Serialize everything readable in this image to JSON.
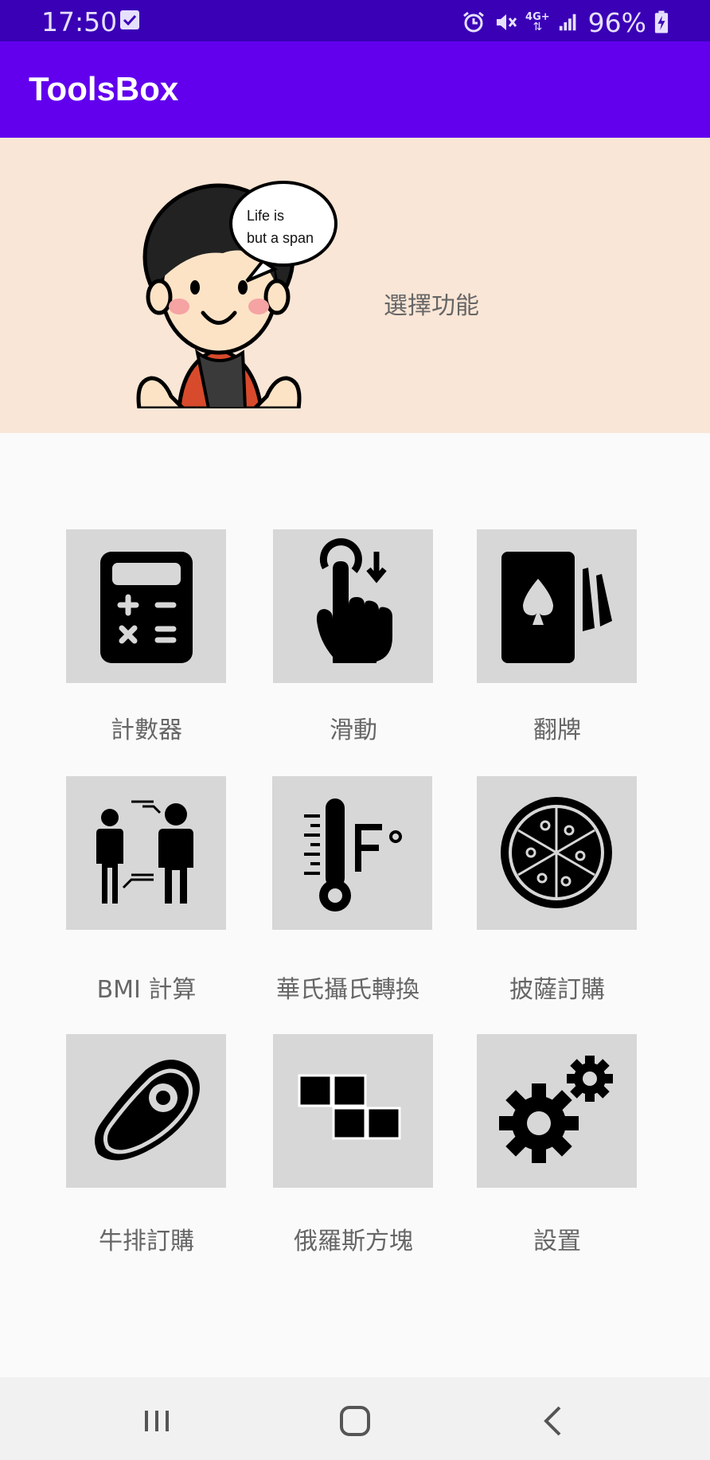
{
  "status_bar": {
    "time": "17:50",
    "network": "4G+",
    "battery": "96%",
    "icons": [
      "notification-check-icon",
      "alarm-icon",
      "vibrate-mute-icon",
      "network-4g-icon",
      "signal-icon",
      "battery-charging-icon"
    ]
  },
  "app_bar": {
    "title": "ToolsBox"
  },
  "banner": {
    "speech_line1": "Life is",
    "speech_line2": "but a span",
    "prompt": "選擇功能"
  },
  "tools": [
    {
      "label": "計數器",
      "icon": "calculator-icon"
    },
    {
      "label": "滑動",
      "icon": "swipe-down-icon"
    },
    {
      "label": "翻牌",
      "icon": "cards-icon"
    },
    {
      "label": "BMI 計算",
      "icon": "bmi-people-icon"
    },
    {
      "label": "華氏攝氏轉換",
      "icon": "thermometer-icon"
    },
    {
      "label": "披薩訂購",
      "icon": "pizza-icon"
    },
    {
      "label": "牛排訂購",
      "icon": "steak-icon"
    },
    {
      "label": "俄羅斯方塊",
      "icon": "tetris-icon"
    },
    {
      "label": "設置",
      "icon": "settings-icon"
    }
  ],
  "colors": {
    "status_bar": "#3a00b6",
    "app_bar": "#6200ee",
    "banner": "#fae6d6",
    "tile": "#d7d7d7"
  }
}
